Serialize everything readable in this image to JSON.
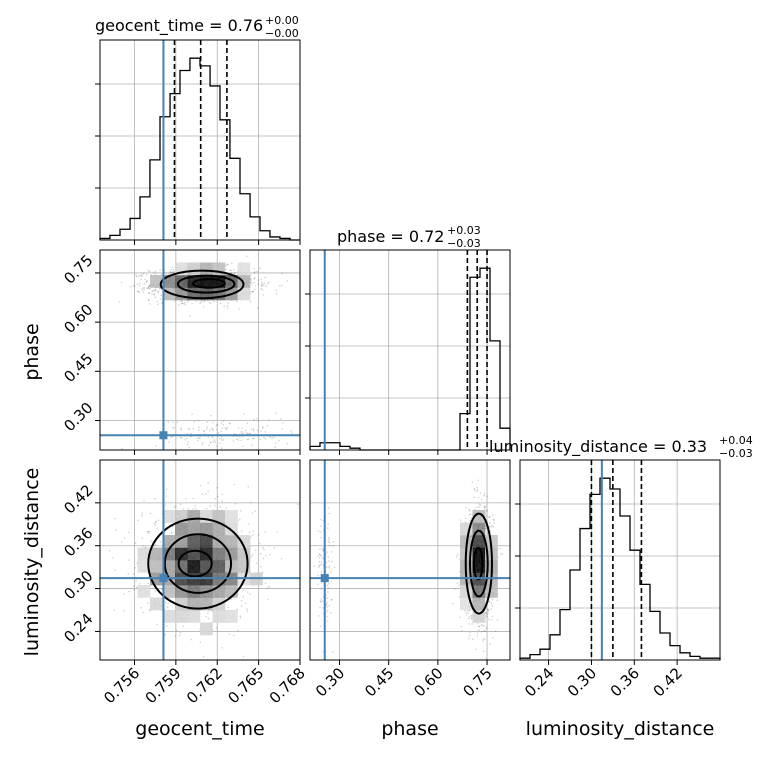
{
  "chart_data": {
    "type": "corner",
    "parameters": [
      "geocent_time",
      "phase",
      "luminosity_distance"
    ],
    "axes": {
      "geocent_time": {
        "label": "geocent_time",
        "range": [
          0.7535,
          0.768
        ],
        "ticks": [
          0.756,
          0.759,
          0.762,
          0.765,
          0.768
        ],
        "tick_labels": [
          "0.756",
          "0.759",
          "0.762",
          "0.765",
          "0.768"
        ],
        "truth": 0.7581,
        "median": 0.7608,
        "q16": 0.7589,
        "q84": 0.7627
      },
      "phase": {
        "label": "phase",
        "range": [
          0.21,
          0.82
        ],
        "ticks": [
          0.3,
          0.45,
          0.6,
          0.75
        ],
        "tick_labels": [
          "0.30",
          "0.45",
          "0.60",
          "0.75"
        ],
        "truth": 0.255,
        "median": 0.72,
        "q16": 0.69,
        "q84": 0.75
      },
      "luminosity_distance": {
        "label": "luminosity_distance",
        "range": [
          0.2,
          0.48
        ],
        "ticks": [
          0.24,
          0.3,
          0.36,
          0.42
        ],
        "tick_labels": [
          "0.24",
          "0.30",
          "0.36",
          "0.42"
        ],
        "truth": 0.3146,
        "median": 0.33,
        "q16": 0.3,
        "q84": 0.37
      }
    },
    "titles": {
      "geocent_time": {
        "name": "geocent_time",
        "value": "0.76",
        "plus": "+0.00",
        "minus": "−0.00"
      },
      "phase": {
        "name": "phase",
        "value": "0.72",
        "plus": "+0.03",
        "minus": "−0.03"
      },
      "luminosity_distance": {
        "name": "luminosity_distance",
        "value": "0.33",
        "plus": "+0.04",
        "minus": "−0.03"
      }
    },
    "histograms": {
      "geocent_time": {
        "bin_edges": [
          0.7535,
          0.75422,
          0.75495,
          0.75568,
          0.7564,
          0.75712,
          0.75785,
          0.75858,
          0.7593,
          0.76002,
          0.76075,
          0.76148,
          0.7622,
          0.76292,
          0.76365,
          0.76438,
          0.7651,
          0.76582,
          0.76655,
          0.76728,
          0.768
        ],
        "counts": [
          1,
          3,
          7,
          14,
          28,
          52,
          80,
          95,
          110,
          118,
          113,
          100,
          78,
          53,
          30,
          15,
          6,
          2,
          1,
          0
        ]
      },
      "phase": {
        "bin_edges": [
          0.21,
          0.2405,
          0.271,
          0.3015,
          0.332,
          0.3625,
          0.393,
          0.4235,
          0.454,
          0.4845,
          0.515,
          0.5455,
          0.576,
          0.6065,
          0.637,
          0.6675,
          0.698,
          0.7285,
          0.759,
          0.7895,
          0.82
        ],
        "counts": [
          2,
          4,
          4,
          2,
          1,
          0,
          0,
          0,
          0,
          0,
          0,
          0,
          0,
          0,
          0,
          20,
          95,
          100,
          60,
          12
        ]
      },
      "luminosity_distance": {
        "bin_edges": [
          0.2,
          0.214,
          0.228,
          0.242,
          0.256,
          0.27,
          0.284,
          0.298,
          0.312,
          0.326,
          0.34,
          0.354,
          0.368,
          0.382,
          0.396,
          0.41,
          0.424,
          0.438,
          0.452,
          0.466,
          0.48
        ],
        "counts": [
          1,
          3,
          6,
          14,
          28,
          50,
          73,
          92,
          101,
          95,
          80,
          61,
          42,
          27,
          15,
          8,
          4,
          2,
          1,
          1
        ]
      }
    },
    "scatter": [
      {
        "x": "geocent_time",
        "y": "phase",
        "components": [
          {
            "mx": 0.761,
            "my": 0.715,
            "sx": 0.0019,
            "sy": 0.025,
            "n": 1500
          },
          {
            "mx": 0.7625,
            "my": 0.26,
            "sx": 0.0025,
            "sy": 0.025,
            "n": 160
          }
        ]
      },
      {
        "x": "geocent_time",
        "y": "luminosity_distance",
        "components": [
          {
            "mx": 0.7606,
            "my": 0.335,
            "sx": 0.002,
            "sy": 0.038,
            "n": 1500
          }
        ]
      },
      {
        "x": "phase",
        "y": "luminosity_distance",
        "components": [
          {
            "mx": 0.725,
            "my": 0.335,
            "sx": 0.022,
            "sy": 0.038,
            "n": 1300
          },
          {
            "mx": 0.255,
            "my": 0.32,
            "sx": 0.012,
            "sy": 0.04,
            "n": 110
          }
        ]
      }
    ],
    "contours": [
      {
        "x": "geocent_time",
        "y": "phase",
        "levels": [
          {
            "cx": 0.7609,
            "cy": 0.715,
            "rx": 0.003,
            "ry": 0.042
          },
          {
            "cx": 0.7612,
            "cy": 0.716,
            "rx": 0.00205,
            "ry": 0.026
          },
          {
            "cx": 0.7614,
            "cy": 0.718,
            "rx": 0.00115,
            "ry": 0.013
          }
        ]
      },
      {
        "x": "geocent_time",
        "y": "luminosity_distance",
        "levels": [
          {
            "cx": 0.7606,
            "cy": 0.335,
            "rx": 0.0036,
            "ry": 0.063
          },
          {
            "cx": 0.7606,
            "cy": 0.335,
            "rx": 0.0024,
            "ry": 0.041
          },
          {
            "cx": 0.7604,
            "cy": 0.335,
            "rx": 0.0012,
            "ry": 0.018
          }
        ]
      },
      {
        "x": "phase",
        "y": "luminosity_distance",
        "levels": [
          {
            "cx": 0.725,
            "cy": 0.335,
            "rx": 0.04,
            "ry": 0.07
          },
          {
            "cx": 0.725,
            "cy": 0.335,
            "rx": 0.027,
            "ry": 0.046
          },
          {
            "cx": 0.723,
            "cy": 0.335,
            "rx": 0.013,
            "ry": 0.022
          }
        ]
      }
    ],
    "truth_color": "#4682b4",
    "grid": true
  }
}
